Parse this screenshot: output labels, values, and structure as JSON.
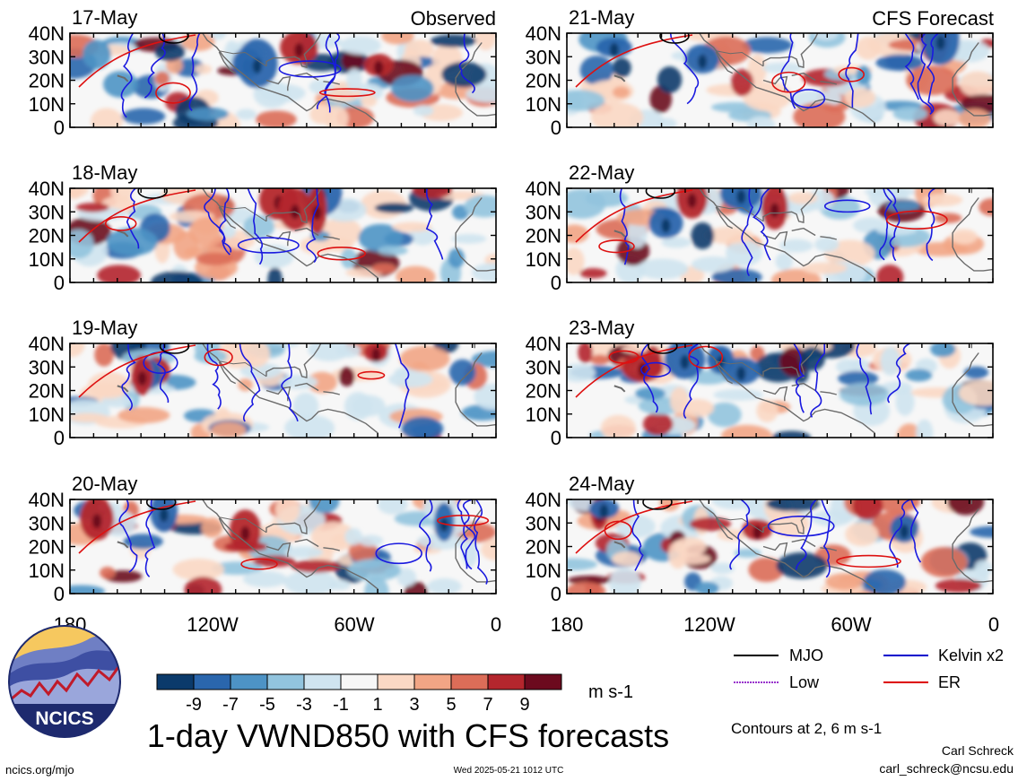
{
  "columns": {
    "left": {
      "label": "Observed"
    },
    "right": {
      "label": "CFS Forecast"
    }
  },
  "panels": [
    {
      "date": "17-May"
    },
    {
      "date": "18-May"
    },
    {
      "date": "19-May"
    },
    {
      "date": "20-May"
    },
    {
      "date": "21-May"
    },
    {
      "date": "22-May"
    },
    {
      "date": "23-May"
    },
    {
      "date": "24-May"
    }
  ],
  "lat_ticks": [
    "40N",
    "30N",
    "20N",
    "10N",
    "0"
  ],
  "lon_ticks": [
    "180",
    "120W",
    "60W",
    "0"
  ],
  "colorbar": {
    "colors": [
      "#0b3a6b",
      "#2a66ad",
      "#4d93c5",
      "#92c4de",
      "#cfe4f0",
      "#f7f7f7",
      "#fbd8c4",
      "#f2a585",
      "#dc6d58",
      "#b4262d",
      "#6c0a1e"
    ],
    "labels": [
      "-9",
      "-7",
      "-5",
      "-3",
      "-1",
      "1",
      "3",
      "5",
      "7",
      "9"
    ],
    "units": "m s-1"
  },
  "legend": {
    "items": [
      {
        "label": "MJO",
        "color": "#000000"
      },
      {
        "label": "Kelvin x2",
        "color": "#0000cc"
      },
      {
        "label": "Low",
        "color": "#9933cc"
      },
      {
        "label": "ER",
        "color": "#dd0000"
      }
    ],
    "contours_note": "Contours at 2, 6 m s-1"
  },
  "title": "1-day VWND850 with CFS forecasts",
  "logo_text": "NCICS",
  "footer": {
    "url": "ncics.org/mjo",
    "timestamp": "Wed 2025-05-21 1012 UTC",
    "author": "Carl Schreck",
    "email": "carl_schreck@ncsu.edu"
  },
  "chart_data": {
    "type": "heatmap",
    "title": "1-day VWND850 with CFS forecasts",
    "variable": "850-hPa meridional wind",
    "units": "m s-1",
    "x_range": [
      "180",
      "0"
    ],
    "y_range": [
      "0",
      "40N"
    ],
    "color_levels": [
      -9,
      -7,
      -5,
      -3,
      -1,
      1,
      3,
      5,
      7,
      9
    ],
    "contour_levels": [
      2,
      6
    ],
    "panels": [
      {
        "date": "17-May",
        "source": "Observed"
      },
      {
        "date": "18-May",
        "source": "Observed"
      },
      {
        "date": "19-May",
        "source": "Observed"
      },
      {
        "date": "20-May",
        "source": "Observed"
      },
      {
        "date": "21-May",
        "source": "CFS Forecast"
      },
      {
        "date": "22-May",
        "source": "CFS Forecast"
      },
      {
        "date": "23-May",
        "source": "CFS Forecast"
      },
      {
        "date": "24-May",
        "source": "CFS Forecast"
      }
    ],
    "legend": [
      "MJO",
      "Kelvin x2",
      "Low",
      "ER"
    ]
  }
}
